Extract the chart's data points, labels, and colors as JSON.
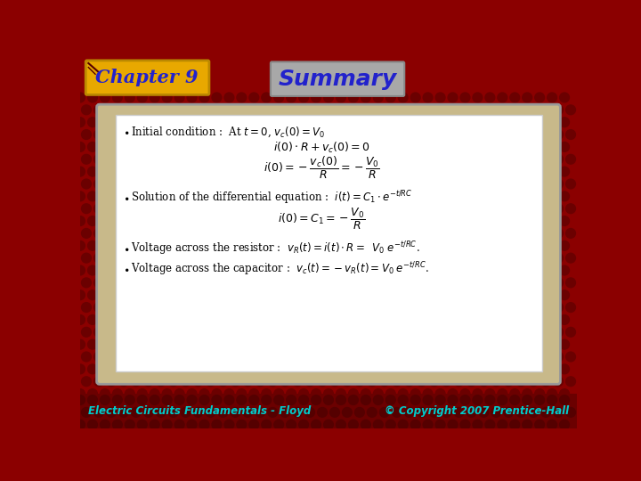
{
  "title": "Summary",
  "chapter": "Chapter 9",
  "footer_left": "Electric Circuits Fundamentals - Floyd",
  "footer_right": "© Copyright 2007 Prentice-Hall",
  "bg_color": "#8B0000",
  "card_bg": "#C8B98A",
  "inner_bg": "#FFFFFF",
  "chapter_box_color": "#E8A800",
  "summary_box_color": "#A8A8A8",
  "title_color": "#2222CC",
  "chapter_color": "#2222CC",
  "footer_color": "#00CCCC",
  "footer_bg": "#6B0000"
}
